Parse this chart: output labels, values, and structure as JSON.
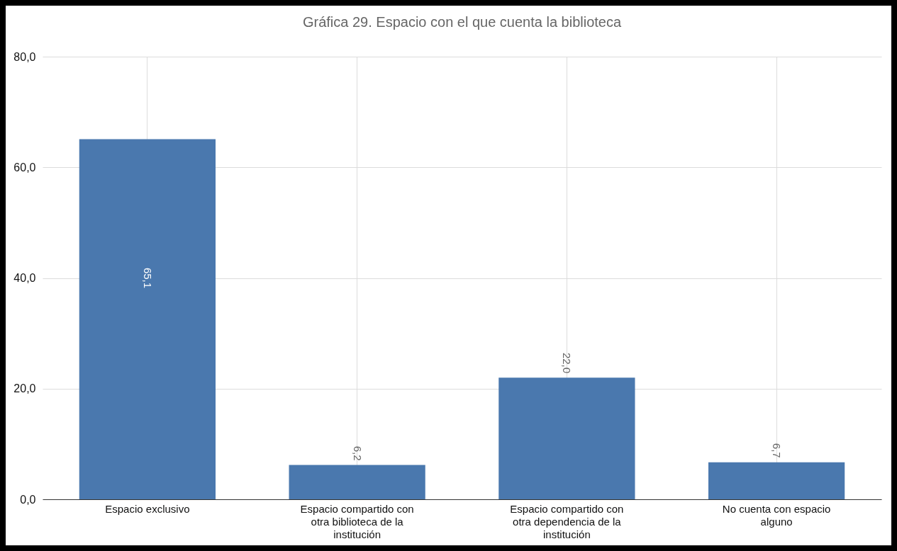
{
  "chart_data": {
    "type": "bar",
    "title": "Gráfica 29. Espacio con el que cuenta la biblioteca",
    "categories": [
      "Espacio exclusivo",
      "Espacio compartido con otra biblioteca de la institución",
      "Espacio compartido con otra dependencia de la institución",
      "No cuenta con espacio alguno"
    ],
    "values": [
      65.1,
      6.2,
      22.0,
      6.7
    ],
    "value_labels": [
      "65,1",
      "6,2",
      "22,0",
      "6,7"
    ],
    "color": "#4a78ae",
    "ylim": [
      0,
      80
    ],
    "yticks": [
      {
        "value": 0,
        "label": "0,0"
      },
      {
        "value": 20,
        "label": "20,0"
      },
      {
        "value": 40,
        "label": "40,0"
      },
      {
        "value": 60,
        "label": "60,0"
      },
      {
        "value": 80,
        "label": "80,0"
      }
    ],
    "grid": true
  }
}
